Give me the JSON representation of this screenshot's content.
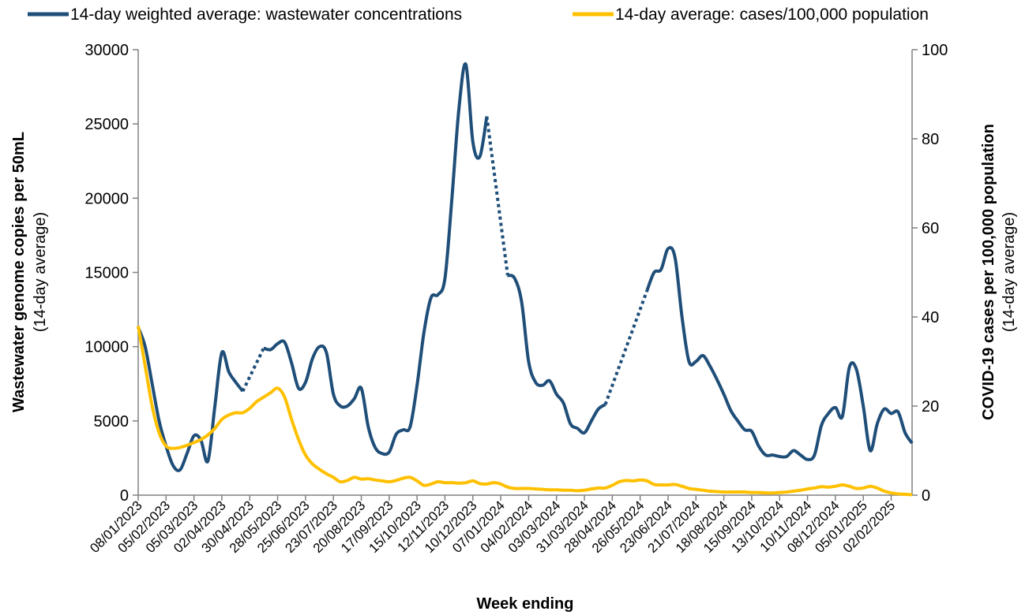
{
  "chart_data": {
    "type": "line",
    "x_title": "Week ending",
    "y_title": "Wastewater genome copies per 50mL",
    "y_subtitle": "(14-day average)",
    "y2_title": "COVID-19 cases per 100,000 population",
    "y2_subtitle": "(14-day average)",
    "ylim": [
      0,
      30000
    ],
    "yticks": [
      0,
      5000,
      10000,
      15000,
      20000,
      25000,
      30000
    ],
    "y2lim": [
      0,
      100
    ],
    "y2ticks": [
      0,
      20,
      40,
      60,
      80,
      100
    ],
    "grid": false,
    "legend": "top",
    "gap_style": "dotted",
    "categories": [
      "08/01/2023",
      null,
      null,
      null,
      "05/02/2023",
      null,
      null,
      null,
      "05/03/2023",
      null,
      null,
      null,
      "02/04/2023",
      null,
      null,
      null,
      "30/04/2023",
      null,
      null,
      null,
      "28/05/2023",
      null,
      null,
      null,
      "25/06/2023",
      null,
      null,
      null,
      "23/07/2023",
      null,
      null,
      null,
      "20/08/2023",
      null,
      null,
      null,
      "17/09/2023",
      null,
      null,
      null,
      "15/10/2023",
      null,
      null,
      null,
      "12/11/2023",
      null,
      null,
      null,
      "10/12/2023",
      null,
      null,
      null,
      "07/01/2024",
      null,
      null,
      null,
      "04/02/2024",
      null,
      null,
      null,
      "03/03/2024",
      null,
      null,
      null,
      "31/03/2024",
      null,
      null,
      null,
      "28/04/2024",
      null,
      null,
      null,
      "26/05/2024",
      null,
      null,
      null,
      "23/06/2024",
      null,
      null,
      null,
      "21/07/2024",
      null,
      null,
      null,
      "18/08/2024",
      null,
      null,
      null,
      "15/09/2024",
      null,
      null,
      null,
      "13/10/2024",
      null,
      null,
      null,
      "10/11/2024",
      null,
      null,
      null,
      "08/12/2024",
      null,
      null,
      null,
      "05/01/2025",
      null,
      null,
      null,
      "02/02/2025",
      null,
      null,
      null
    ],
    "series": [
      {
        "name": "14-day weighted average: wastewater concentrations",
        "color": "#1f4e79",
        "axis": "y",
        "values": [
          11300,
          10000,
          7500,
          5000,
          3300,
          2000,
          1700,
          2800,
          4000,
          3700,
          2300,
          6000,
          9600,
          8300,
          7600,
          7000,
          null,
          null,
          9900,
          9800,
          10200,
          10300,
          8900,
          7200,
          7600,
          9200,
          10000,
          9600,
          6800,
          6000,
          6000,
          6500,
          7200,
          4600,
          3200,
          2800,
          2900,
          4100,
          4400,
          4600,
          7400,
          11000,
          13300,
          13500,
          14600,
          20000,
          26000,
          29000,
          23800,
          22800,
          25500,
          null,
          null,
          14800,
          14600,
          13000,
          9000,
          7600,
          7400,
          7700,
          6800,
          6200,
          4800,
          4500,
          4200,
          5000,
          5800,
          6100,
          null,
          null,
          null,
          null,
          null,
          13800,
          15000,
          15200,
          16600,
          16000,
          12000,
          9000,
          9000,
          9400,
          8700,
          7800,
          6800,
          5700,
          5000,
          4400,
          4300,
          3300,
          2700,
          2700,
          2600,
          2600,
          3000,
          2700,
          2400,
          2700,
          4700,
          5500,
          5900,
          5300,
          8600,
          8500,
          6000,
          3000,
          4800,
          5800,
          5500,
          5600,
          4200,
          3500
        ]
      },
      {
        "name": "14-day average: cases/100,000 population",
        "color": "#ffc000",
        "axis": "y2",
        "values": [
          38,
          29,
          20,
          14,
          11,
          10.5,
          10.7,
          11.2,
          11.8,
          12.5,
          13.5,
          15,
          17,
          18,
          18.5,
          18.5,
          19.5,
          21,
          22,
          23,
          24,
          22,
          17,
          12.5,
          9,
          7,
          5.8,
          4.8,
          4,
          3,
          3.3,
          4,
          3.6,
          3.7,
          3.4,
          3.2,
          3,
          3.3,
          3.8,
          4,
          3.2,
          2.2,
          2.5,
          3,
          2.8,
          2.8,
          2.7,
          2.8,
          3.2,
          2.6,
          2.5,
          2.8,
          2.5,
          1.8,
          1.5,
          1.5,
          1.5,
          1.4,
          1.3,
          1.2,
          1.2,
          1.1,
          1.1,
          1,
          1.1,
          1.4,
          1.6,
          1.6,
          2.2,
          3,
          3.3,
          3.2,
          3.4,
          3.2,
          2.4,
          2.3,
          2.3,
          2.4,
          2,
          1.5,
          1.3,
          1.1,
          0.9,
          0.8,
          0.7,
          0.7,
          0.7,
          0.7,
          0.6,
          0.6,
          0.5,
          0.5,
          0.6,
          0.7,
          0.9,
          1.1,
          1.4,
          1.6,
          1.9,
          1.8,
          2,
          2.3,
          2,
          1.5,
          1.6,
          2,
          1.6,
          0.9,
          0.5,
          0.3,
          0.2,
          0.1
        ]
      }
    ]
  }
}
